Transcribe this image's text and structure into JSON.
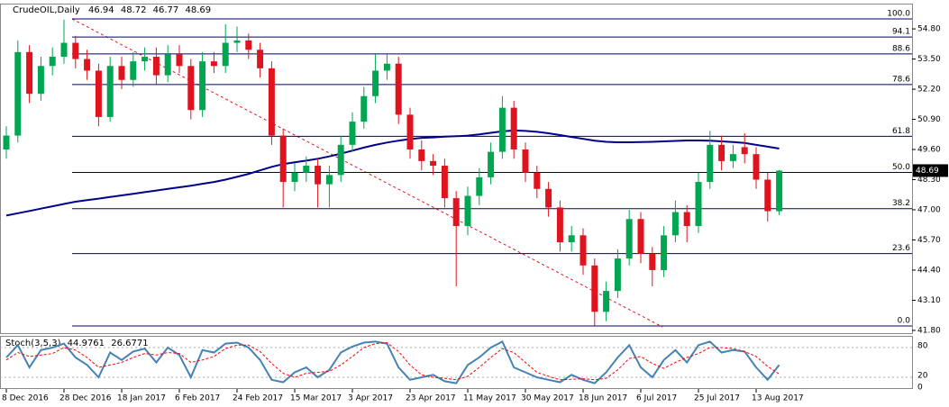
{
  "chart_data": [
    {
      "type": "candlestick",
      "title": "CrudeOIL,Daily",
      "categories": [
        "8 Dec 2016",
        null,
        null,
        null,
        null,
        "28 Dec 2016",
        null,
        null,
        null,
        null,
        "18 Jan 2017",
        null,
        null,
        null,
        null,
        "6 Feb 2017",
        null,
        null,
        null,
        null,
        "24 Feb 2017",
        null,
        null,
        null,
        null,
        "15 Mar 2017",
        null,
        null,
        null,
        null,
        "3 Apr 2017",
        null,
        null,
        null,
        null,
        "23 Apr 2017",
        null,
        null,
        null,
        null,
        "11 May 2017",
        null,
        null,
        null,
        null,
        "30 May 2017",
        null,
        null,
        null,
        null,
        "18 Jun 2017",
        null,
        null,
        null,
        null,
        "6 Jul 2017",
        null,
        null,
        null,
        null,
        "25 Jul 2017",
        null,
        null,
        null,
        null,
        "13 Aug 2017",
        null,
        null
      ],
      "open": [
        49.6,
        50.2,
        53.8,
        52.0,
        53.2,
        53.6,
        54.2,
        53.5,
        53.0,
        51.0,
        53.2,
        52.6,
        53.4,
        53.6,
        52.8,
        53.7,
        53.2,
        51.3,
        53.4,
        53.2,
        54.2,
        54.3,
        53.9,
        53.1,
        50.2,
        48.2,
        48.6,
        48.9,
        48.1,
        48.5,
        49.8,
        50.8,
        51.9,
        53.0,
        53.3,
        51.1,
        49.6,
        49.1,
        48.9,
        47.5,
        46.3,
        47.6,
        48.4,
        49.5,
        51.4,
        49.6,
        48.6,
        47.9,
        47.1,
        45.6,
        45.9,
        44.6,
        42.6,
        43.5,
        44.9,
        46.6,
        45.1,
        44.4,
        45.9,
        46.9,
        46.3,
        48.2,
        49.8,
        49.1,
        49.7,
        49.4,
        48.3,
        46.94
      ],
      "high": [
        50.6,
        54.3,
        54.1,
        53.6,
        54.0,
        55.2,
        54.5,
        53.9,
        53.3,
        53.6,
        53.6,
        53.8,
        54.0,
        54.0,
        54.1,
        54.1,
        53.5,
        53.8,
        53.8,
        55.0,
        54.9,
        54.6,
        54.2,
        53.4,
        50.5,
        49.0,
        49.3,
        49.2,
        48.9,
        50.2,
        51.2,
        52.3,
        53.7,
        53.7,
        53.6,
        51.4,
        50.0,
        49.4,
        49.2,
        47.8,
        48.0,
        48.8,
        49.9,
        51.9,
        51.7,
        49.9,
        48.9,
        48.2,
        47.4,
        46.3,
        46.2,
        44.9,
        43.9,
        45.3,
        47.0,
        46.9,
        45.4,
        46.3,
        47.4,
        47.2,
        48.6,
        50.4,
        50.2,
        49.8,
        50.3,
        49.7,
        48.6,
        48.72
      ],
      "low": [
        49.2,
        49.9,
        51.6,
        51.7,
        52.8,
        53.3,
        53.1,
        52.6,
        50.6,
        50.8,
        52.2,
        52.3,
        53.0,
        52.4,
        52.5,
        52.9,
        50.9,
        51.0,
        52.9,
        52.9,
        53.8,
        53.5,
        52.7,
        49.8,
        47.1,
        47.8,
        48.2,
        47.1,
        47.1,
        48.2,
        49.5,
        50.5,
        51.6,
        52.6,
        50.7,
        49.2,
        48.7,
        48.5,
        47.1,
        43.7,
        45.9,
        47.2,
        48.1,
        49.2,
        49.2,
        48.2,
        47.5,
        46.7,
        45.2,
        45.2,
        44.2,
        42.0,
        42.2,
        43.2,
        44.6,
        44.7,
        43.7,
        44.1,
        45.6,
        45.6,
        46.0,
        47.9,
        48.7,
        48.8,
        49.0,
        47.9,
        46.5,
        46.77
      ],
      "close": [
        50.2,
        53.8,
        52.0,
        53.2,
        53.6,
        54.2,
        53.5,
        53.0,
        51.0,
        53.2,
        52.6,
        53.4,
        53.6,
        52.8,
        53.7,
        53.2,
        51.3,
        53.4,
        53.2,
        54.2,
        54.3,
        53.9,
        53.1,
        50.2,
        48.2,
        48.6,
        48.9,
        48.1,
        48.5,
        49.8,
        50.8,
        51.9,
        53.0,
        53.3,
        51.1,
        49.6,
        49.1,
        48.9,
        47.5,
        46.3,
        47.6,
        48.4,
        49.5,
        51.4,
        49.6,
        48.6,
        47.9,
        47.1,
        45.6,
        45.9,
        44.6,
        42.6,
        43.5,
        44.9,
        46.6,
        45.1,
        44.4,
        45.9,
        46.9,
        46.3,
        48.2,
        49.8,
        49.1,
        49.4,
        49.4,
        48.3,
        46.94,
        48.69
      ],
      "up_color": "#00a651",
      "down_color": "#e0141e",
      "moving_average": {
        "color": "#00008b",
        "values": [
          46.75,
          46.85,
          46.95,
          47.05,
          47.15,
          47.25,
          47.35,
          47.42,
          47.48,
          47.55,
          47.62,
          47.69,
          47.76,
          47.83,
          47.9,
          47.97,
          48.04,
          48.12,
          48.2,
          48.3,
          48.42,
          48.55,
          48.7,
          48.85,
          48.97,
          49.05,
          49.12,
          49.2,
          49.3,
          49.42,
          49.55,
          49.68,
          49.8,
          49.9,
          49.98,
          50.05,
          50.1,
          50.12,
          50.15,
          50.17,
          50.2,
          50.25,
          50.32,
          50.38,
          50.42,
          50.4,
          50.36,
          50.3,
          50.22,
          50.14,
          50.06,
          49.98,
          49.93,
          49.91,
          49.91,
          49.92,
          49.93,
          49.95,
          49.97,
          49.99,
          49.99,
          49.98,
          49.95,
          49.92,
          49.88,
          49.8,
          49.72,
          49.64
        ]
      },
      "fibonacci": {
        "color": "#000066",
        "levels": [
          {
            "label": "100.0",
            "value": 55.23
          },
          {
            "label": "94.1",
            "value": 54.45
          },
          {
            "label": "88.6",
            "value": 53.72
          },
          {
            "label": "78.6",
            "value": 52.4
          },
          {
            "label": "61.8",
            "value": 50.17
          },
          {
            "label": "50.0",
            "value": 48.61
          },
          {
            "label": "38.2",
            "value": 47.05
          },
          {
            "label": "23.6",
            "value": 45.11
          },
          {
            "label": "0.0",
            "value": 41.99
          }
        ]
      },
      "ylim": [
        41.68,
        55.89
      ],
      "yticks": [
        {
          "value": 54.8,
          "label": "54.80"
        },
        {
          "value": 53.5,
          "label": "53.50"
        },
        {
          "value": 52.2,
          "label": "52.20"
        },
        {
          "value": 50.9,
          "label": "50.90"
        },
        {
          "value": 49.6,
          "label": "49.60"
        },
        {
          "value": 48.3,
          "label": "48.30"
        },
        {
          "value": 47.0,
          "label": "47.00"
        },
        {
          "value": 45.7,
          "label": "45.70"
        },
        {
          "value": 44.4,
          "label": "44.40"
        },
        {
          "value": 43.1,
          "label": "43.10"
        },
        {
          "value": 41.8,
          "label": "41.80"
        }
      ]
    },
    {
      "type": "stochastic",
      "title": "Stoch(3,5,3)",
      "series": [
        {
          "color": "#4682b4",
          "values": [
            60,
            85,
            40,
            75,
            80,
            88,
            60,
            45,
            20,
            70,
            55,
            72,
            78,
            50,
            80,
            65,
            20,
            75,
            70,
            88,
            90,
            80,
            55,
            15,
            10,
            30,
            40,
            20,
            35,
            70,
            82,
            90,
            92,
            88,
            40,
            15,
            20,
            25,
            12,
            8,
            45,
            60,
            80,
            92,
            40,
            30,
            20,
            15,
            10,
            25,
            15,
            8,
            30,
            60,
            85,
            40,
            20,
            55,
            75,
            50,
            85,
            92,
            70,
            75,
            72,
            40,
            15,
            44.9761
          ]
        },
        {
          "color": "#ff0000",
          "dashed": true,
          "values": [
            55,
            70,
            62,
            65,
            68,
            80,
            75,
            60,
            40,
            45,
            50,
            60,
            68,
            65,
            70,
            68,
            50,
            55,
            62,
            78,
            85,
            85,
            72,
            48,
            28,
            20,
            28,
            30,
            32,
            45,
            62,
            80,
            88,
            90,
            72,
            45,
            25,
            20,
            18,
            15,
            22,
            40,
            60,
            78,
            70,
            50,
            30,
            22,
            15,
            16,
            17,
            15,
            18,
            35,
            58,
            62,
            48,
            38,
            50,
            60,
            68,
            80,
            80,
            78,
            72,
            62,
            42,
            26.6771
          ]
        }
      ],
      "ylim": [
        0,
        100
      ],
      "yticks": [
        0,
        20,
        80
      ]
    }
  ]
}
